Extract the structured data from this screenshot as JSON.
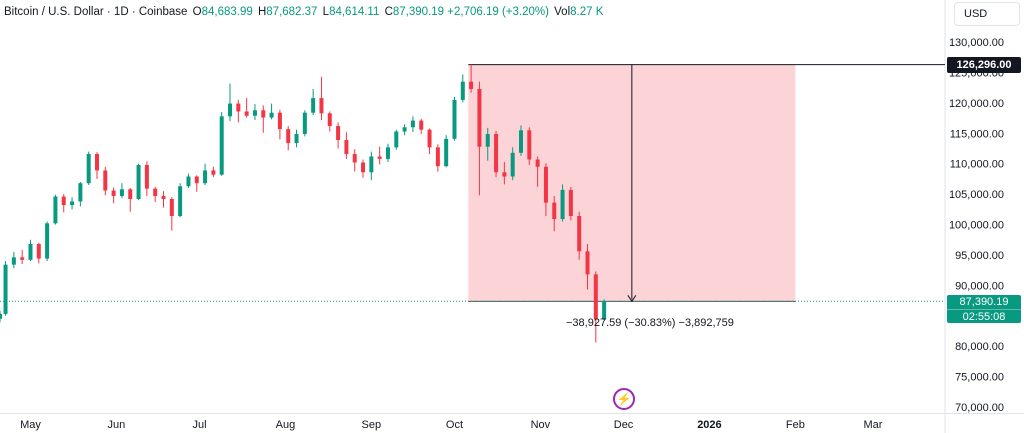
{
  "header": {
    "symbol": "Bitcoin / U.S. Dollar · 1D · Coinbase",
    "open_label": "O",
    "open_value": "84,683.99",
    "high_label": "H",
    "high_value": "87,682.37",
    "low_label": "L",
    "low_value": "84,614.11",
    "close_label": "C",
    "close_value": "87,390.19",
    "change": "+2,706.19 (+3.20%)",
    "vol_label": "Vol",
    "vol_value": "8.27 K"
  },
  "currency": "USD",
  "measure_label": "−38,927.59 (−30.83%) −3,892,759",
  "price_flag": {
    "price": "87,390.19",
    "countdown": "02:55:08"
  },
  "high_flag": "126,296.00",
  "colors": {
    "up": "#089981",
    "down": "#f23645",
    "range_fill": "#f23645",
    "range_line": "#131722",
    "axis_text": "#131722",
    "price_line": "#089981"
  },
  "icons": {
    "spark": "lightning-bolt-icon"
  },
  "chart_data": {
    "type": "candlestick",
    "symbol": "BTCUSD",
    "interval": "1D",
    "ylim": [
      69000,
      132000
    ],
    "y_ticks": [
      {
        "value": 70000,
        "label": "70,000.00"
      },
      {
        "value": 75000,
        "label": "75,000.00"
      },
      {
        "value": 80000,
        "label": "80,000.00"
      },
      {
        "value": 85000,
        "label": "85,000.00"
      },
      {
        "value": 90000,
        "label": "90,000.00"
      },
      {
        "value": 95000,
        "label": "95,000.00"
      },
      {
        "value": 100000,
        "label": "100,000.00"
      },
      {
        "value": 105000,
        "label": "105,000.00"
      },
      {
        "value": 110000,
        "label": "110,000.00"
      },
      {
        "value": 115000,
        "label": "115,000.00"
      },
      {
        "value": 120000,
        "label": "120,000.00"
      },
      {
        "value": 125000,
        "label": "125,000.00"
      },
      {
        "value": 130000,
        "label": "130,000.00"
      }
    ],
    "x_ticks": [
      {
        "date": "2025-05-01",
        "label": "May",
        "bold": false
      },
      {
        "date": "2025-06-01",
        "label": "Jun",
        "bold": false
      },
      {
        "date": "2025-07-01",
        "label": "Jul",
        "bold": false
      },
      {
        "date": "2025-08-01",
        "label": "Aug",
        "bold": false
      },
      {
        "date": "2025-09-01",
        "label": "Sep",
        "bold": false
      },
      {
        "date": "2025-10-01",
        "label": "Oct",
        "bold": false
      },
      {
        "date": "2025-11-01",
        "label": "Nov",
        "bold": false
      },
      {
        "date": "2025-12-01",
        "label": "Dec",
        "bold": false
      },
      {
        "date": "2026-01-01",
        "label": "2026",
        "bold": true
      },
      {
        "date": "2026-02-01",
        "label": "Feb",
        "bold": false
      },
      {
        "date": "2026-03-01",
        "label": "Mar",
        "bold": false
      }
    ],
    "x_range": [
      "2025-04-20",
      "2026-03-27"
    ],
    "last_price": 87390.19,
    "measure": {
      "start_date": "2025-10-06",
      "end_date": "2026-02-01",
      "high": 126296.0,
      "low": 87368.41
    },
    "candles": [
      {
        "date": "2025-04-20",
        "o": 84500,
        "h": 85800,
        "l": 83900,
        "c": 85300
      },
      {
        "date": "2025-04-22",
        "o": 85300,
        "h": 94000,
        "l": 85000,
        "c": 93400
      },
      {
        "date": "2025-04-25",
        "o": 93400,
        "h": 95500,
        "l": 92800,
        "c": 94600
      },
      {
        "date": "2025-04-28",
        "o": 94600,
        "h": 95800,
        "l": 93500,
        "c": 94200
      },
      {
        "date": "2025-05-01",
        "o": 94200,
        "h": 97500,
        "l": 94000,
        "c": 96800
      },
      {
        "date": "2025-05-04",
        "o": 96800,
        "h": 97000,
        "l": 93600,
        "c": 94400
      },
      {
        "date": "2025-05-07",
        "o": 94400,
        "h": 100500,
        "l": 94000,
        "c": 100200
      },
      {
        "date": "2025-05-10",
        "o": 100200,
        "h": 104900,
        "l": 100000,
        "c": 104600
      },
      {
        "date": "2025-05-13",
        "o": 104600,
        "h": 105000,
        "l": 102000,
        "c": 103200
      },
      {
        "date": "2025-05-16",
        "o": 103200,
        "h": 104500,
        "l": 102500,
        "c": 103800
      },
      {
        "date": "2025-05-19",
        "o": 103800,
        "h": 107000,
        "l": 103000,
        "c": 106800
      },
      {
        "date": "2025-05-22",
        "o": 106800,
        "h": 112000,
        "l": 106500,
        "c": 111600
      },
      {
        "date": "2025-05-25",
        "o": 111600,
        "h": 111900,
        "l": 107500,
        "c": 108900
      },
      {
        "date": "2025-05-28",
        "o": 108900,
        "h": 109500,
        "l": 104800,
        "c": 105600
      },
      {
        "date": "2025-05-31",
        "o": 105600,
        "h": 106100,
        "l": 103500,
        "c": 104700
      },
      {
        "date": "2025-06-03",
        "o": 104700,
        "h": 106800,
        "l": 104300,
        "c": 105800
      },
      {
        "date": "2025-06-06",
        "o": 105800,
        "h": 106000,
        "l": 102100,
        "c": 104200
      },
      {
        "date": "2025-06-09",
        "o": 104200,
        "h": 110000,
        "l": 104000,
        "c": 109800
      },
      {
        "date": "2025-06-12",
        "o": 109800,
        "h": 110400,
        "l": 104700,
        "c": 105900
      },
      {
        "date": "2025-06-15",
        "o": 105900,
        "h": 106200,
        "l": 103700,
        "c": 104700
      },
      {
        "date": "2025-06-18",
        "o": 104700,
        "h": 105500,
        "l": 102800,
        "c": 104200
      },
      {
        "date": "2025-06-21",
        "o": 104200,
        "h": 104500,
        "l": 99000,
        "c": 101400
      },
      {
        "date": "2025-06-24",
        "o": 101400,
        "h": 106800,
        "l": 101200,
        "c": 106300
      },
      {
        "date": "2025-06-27",
        "o": 106300,
        "h": 108400,
        "l": 106000,
        "c": 107900
      },
      {
        "date": "2025-06-30",
        "o": 107900,
        "h": 108100,
        "l": 105400,
        "c": 106800
      },
      {
        "date": "2025-07-03",
        "o": 106800,
        "h": 110000,
        "l": 106500,
        "c": 108900
      },
      {
        "date": "2025-07-06",
        "o": 108900,
        "h": 109500,
        "l": 107800,
        "c": 108200
      },
      {
        "date": "2025-07-09",
        "o": 108200,
        "h": 118500,
        "l": 108000,
        "c": 117800
      },
      {
        "date": "2025-07-12",
        "o": 117800,
        "h": 123200,
        "l": 117000,
        "c": 119900
      },
      {
        "date": "2025-07-15",
        "o": 119900,
        "h": 120500,
        "l": 116800,
        "c": 118600
      },
      {
        "date": "2025-07-18",
        "o": 118600,
        "h": 120800,
        "l": 117600,
        "c": 117900
      },
      {
        "date": "2025-07-21",
        "o": 117900,
        "h": 119800,
        "l": 117200,
        "c": 118800
      },
      {
        "date": "2025-07-24",
        "o": 118800,
        "h": 119600,
        "l": 115100,
        "c": 117600
      },
      {
        "date": "2025-07-27",
        "o": 117600,
        "h": 119900,
        "l": 117300,
        "c": 118400
      },
      {
        "date": "2025-07-30",
        "o": 118400,
        "h": 118900,
        "l": 114000,
        "c": 115700
      },
      {
        "date": "2025-08-02",
        "o": 115700,
        "h": 116200,
        "l": 112200,
        "c": 113400
      },
      {
        "date": "2025-08-05",
        "o": 113400,
        "h": 115600,
        "l": 112700,
        "c": 114900
      },
      {
        "date": "2025-08-08",
        "o": 114900,
        "h": 118800,
        "l": 114500,
        "c": 118400
      },
      {
        "date": "2025-08-11",
        "o": 118400,
        "h": 122300,
        "l": 118000,
        "c": 120800
      },
      {
        "date": "2025-08-14",
        "o": 120800,
        "h": 124300,
        "l": 117200,
        "c": 118300
      },
      {
        "date": "2025-08-17",
        "o": 118300,
        "h": 118600,
        "l": 115300,
        "c": 116200
      },
      {
        "date": "2025-08-20",
        "o": 116200,
        "h": 116800,
        "l": 112500,
        "c": 113900
      },
      {
        "date": "2025-08-23",
        "o": 113900,
        "h": 115200,
        "l": 110800,
        "c": 111600
      },
      {
        "date": "2025-08-26",
        "o": 111600,
        "h": 112400,
        "l": 108700,
        "c": 110200
      },
      {
        "date": "2025-08-29",
        "o": 110200,
        "h": 110700,
        "l": 107700,
        "c": 108600
      },
      {
        "date": "2025-09-01",
        "o": 108600,
        "h": 112000,
        "l": 107300,
        "c": 111200
      },
      {
        "date": "2025-09-04",
        "o": 111200,
        "h": 112800,
        "l": 109900,
        "c": 110800
      },
      {
        "date": "2025-09-07",
        "o": 110800,
        "h": 113300,
        "l": 110300,
        "c": 112700
      },
      {
        "date": "2025-09-10",
        "o": 112700,
        "h": 115600,
        "l": 112300,
        "c": 115300
      },
      {
        "date": "2025-09-13",
        "o": 115300,
        "h": 116500,
        "l": 114700,
        "c": 116000
      },
      {
        "date": "2025-09-16",
        "o": 116000,
        "h": 117800,
        "l": 115200,
        "c": 117100
      },
      {
        "date": "2025-09-19",
        "o": 117100,
        "h": 117400,
        "l": 114900,
        "c": 115600
      },
      {
        "date": "2025-09-22",
        "o": 115600,
        "h": 115800,
        "l": 111600,
        "c": 112700
      },
      {
        "date": "2025-09-25",
        "o": 112700,
        "h": 113200,
        "l": 108700,
        "c": 109600
      },
      {
        "date": "2025-09-28",
        "o": 109600,
        "h": 114700,
        "l": 109400,
        "c": 114100
      },
      {
        "date": "2025-10-01",
        "o": 114100,
        "h": 121000,
        "l": 113800,
        "c": 120500
      },
      {
        "date": "2025-10-04",
        "o": 120500,
        "h": 124700,
        "l": 120100,
        "c": 123500
      },
      {
        "date": "2025-10-07",
        "o": 123500,
        "h": 126300,
        "l": 121700,
        "c": 122300
      },
      {
        "date": "2025-10-10",
        "o": 122300,
        "h": 123500,
        "l": 104800,
        "c": 112800
      },
      {
        "date": "2025-10-13",
        "o": 112800,
        "h": 115900,
        "l": 110500,
        "c": 114900
      },
      {
        "date": "2025-10-16",
        "o": 114900,
        "h": 115400,
        "l": 107800,
        "c": 108600
      },
      {
        "date": "2025-10-19",
        "o": 108600,
        "h": 110300,
        "l": 106600,
        "c": 107900
      },
      {
        "date": "2025-10-22",
        "o": 107900,
        "h": 112700,
        "l": 107300,
        "c": 111800
      },
      {
        "date": "2025-10-25",
        "o": 111800,
        "h": 116300,
        "l": 111300,
        "c": 115500
      },
      {
        "date": "2025-10-28",
        "o": 115500,
        "h": 116000,
        "l": 109800,
        "c": 110700
      },
      {
        "date": "2025-10-31",
        "o": 110700,
        "h": 111200,
        "l": 106200,
        "c": 109500
      },
      {
        "date": "2025-11-03",
        "o": 109500,
        "h": 110100,
        "l": 101400,
        "c": 103600
      },
      {
        "date": "2025-11-06",
        "o": 103600,
        "h": 104700,
        "l": 98900,
        "c": 100900
      },
      {
        "date": "2025-11-09",
        "o": 100900,
        "h": 106600,
        "l": 100500,
        "c": 105700
      },
      {
        "date": "2025-11-12",
        "o": 105700,
        "h": 106200,
        "l": 100700,
        "c": 101400
      },
      {
        "date": "2025-11-15",
        "o": 101400,
        "h": 102100,
        "l": 94200,
        "c": 95600
      },
      {
        "date": "2025-11-18",
        "o": 95600,
        "h": 96800,
        "l": 89300,
        "c": 91800
      },
      {
        "date": "2025-11-21",
        "o": 91800,
        "h": 92300,
        "l": 80600,
        "c": 84400
      },
      {
        "date": "2025-11-24",
        "o": 84400,
        "h": 87700,
        "l": 84200,
        "c": 87400
      }
    ]
  }
}
